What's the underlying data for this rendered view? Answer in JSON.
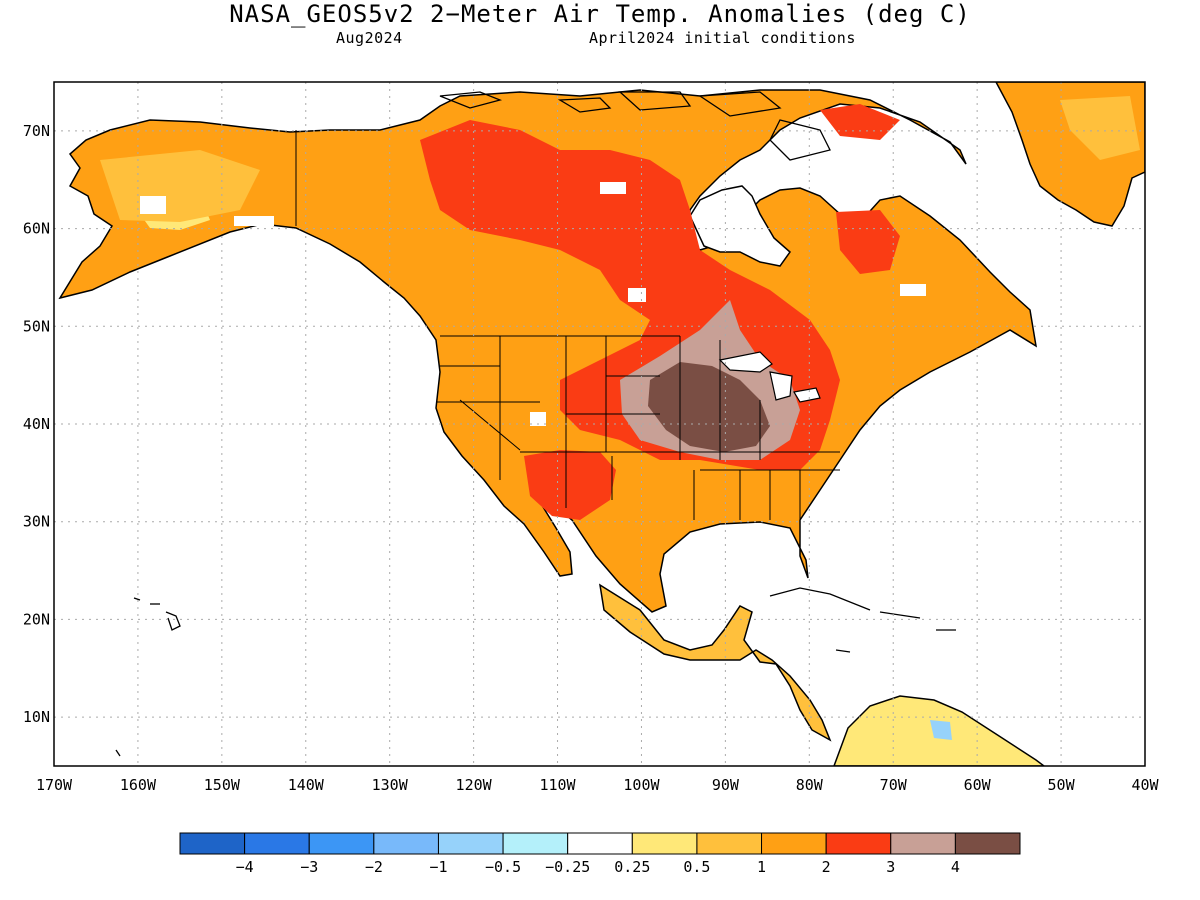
{
  "title": "NASA_GEOS5v2 2−Meter Air Temp. Anomalies (deg C)",
  "valid_month": "Aug2024",
  "initial_conditions": "April2024 initial conditions",
  "map": {
    "lat_range": [
      5,
      75
    ],
    "lon_range": [
      -170,
      -40
    ],
    "lat_labels": [
      {
        "lat": 70,
        "label": "70N"
      },
      {
        "lat": 60,
        "label": "60N"
      },
      {
        "lat": 50,
        "label": "50N"
      },
      {
        "lat": 40,
        "label": "40N"
      },
      {
        "lat": 30,
        "label": "30N"
      },
      {
        "lat": 20,
        "label": "20N"
      },
      {
        "lat": 10,
        "label": "10N"
      }
    ],
    "lon_labels": [
      {
        "lon": -170,
        "label": "170W"
      },
      {
        "lon": -160,
        "label": "160W"
      },
      {
        "lon": -150,
        "label": "150W"
      },
      {
        "lon": -140,
        "label": "140W"
      },
      {
        "lon": -130,
        "label": "130W"
      },
      {
        "lon": -120,
        "label": "120W"
      },
      {
        "lon": -110,
        "label": "110W"
      },
      {
        "lon": -100,
        "label": "100W"
      },
      {
        "lon": -90,
        "label": "90W"
      },
      {
        "lon": -80,
        "label": "80W"
      },
      {
        "lon": -70,
        "label": "70W"
      },
      {
        "lon": -60,
        "label": "60W"
      },
      {
        "lon": -50,
        "label": "50W"
      },
      {
        "lon": -40,
        "label": "40W"
      }
    ],
    "grid": "dotted"
  },
  "colorbar": {
    "colors": [
      "#1e64c8",
      "#2a78e6",
      "#3c96f5",
      "#78b9fa",
      "#96d2fa",
      "#b4f0fa",
      "#ffffff",
      "#ffe878",
      "#ffc03c",
      "#ffa014",
      "#fa3c14",
      "#c8a096",
      "#7a4e44"
    ],
    "labels": [
      "−4",
      "−3",
      "−2",
      "−1",
      "−0.5",
      "−0.25",
      "0.25",
      "0.5",
      "1",
      "2",
      "3",
      "4"
    ]
  },
  "colors": {
    "land_outline": "#000000",
    "ocean": "#ffffff",
    "anomaly_0_5_to_1": "#ffc03c",
    "anomaly_1_to_2": "#ffa014",
    "anomaly_2_to_3": "#fa3c14",
    "anomaly_3_to_4": "#c8a096",
    "anomaly_above_4": "#7a4e44"
  }
}
